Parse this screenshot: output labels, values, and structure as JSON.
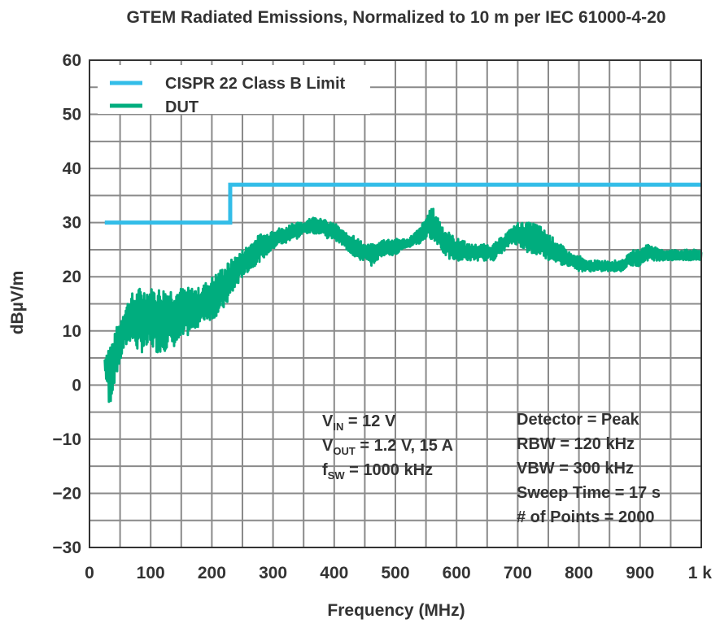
{
  "chart_data": {
    "type": "line",
    "title": "GTEM Radiated Emissions, Normalized to 10 m per IEC 61000-4-20",
    "xlabel": "Frequency (MHz)",
    "ylabel": "dBµV/m",
    "xlim": [
      0,
      1000
    ],
    "ylim": [
      -30,
      60
    ],
    "x_ticks": [
      0,
      100,
      200,
      300,
      400,
      500,
      600,
      700,
      800,
      900,
      1000
    ],
    "x_tick_labels": [
      "0",
      "100",
      "200",
      "300",
      "400",
      "500",
      "600",
      "700",
      "800",
      "900",
      "1 k"
    ],
    "y_ticks": [
      60,
      50,
      40,
      30,
      20,
      10,
      0,
      -10,
      -20,
      -30
    ],
    "y_tick_labels": [
      "60",
      "50",
      "40",
      "30",
      "20",
      "10",
      "0",
      "−10",
      "−20",
      "−30"
    ],
    "grid": true,
    "legend_position": "top-left",
    "series": [
      {
        "name": "CISPR 22 Class B Limit",
        "color": "#33bde8",
        "x": [
          25,
          230,
          230,
          1000
        ],
        "y": [
          30,
          30,
          37,
          37
        ]
      },
      {
        "name": "DUT",
        "color": "#00ad7e",
        "envelope_x": [
          25,
          27,
          30,
          32,
          35,
          40,
          45,
          50,
          55,
          60,
          65,
          70,
          75,
          80,
          90,
          100,
          110,
          120,
          130,
          140,
          150,
          160,
          170,
          180,
          190,
          200,
          210,
          220,
          230,
          240,
          250,
          260,
          270,
          280,
          290,
          300,
          310,
          320,
          330,
          340,
          350,
          360,
          370,
          380,
          390,
          400,
          410,
          420,
          430,
          440,
          450,
          460,
          470,
          480,
          490,
          500,
          510,
          520,
          530,
          540,
          550,
          560,
          565,
          570,
          575,
          580,
          590,
          600,
          610,
          620,
          630,
          640,
          650,
          660,
          670,
          680,
          690,
          700,
          710,
          720,
          730,
          740,
          750,
          760,
          770,
          780,
          790,
          800,
          810,
          820,
          830,
          840,
          850,
          860,
          870,
          880,
          890,
          900,
          910,
          920,
          930,
          940,
          950,
          960,
          970,
          980,
          990,
          1000
        ],
        "envelope_min": [
          3,
          1,
          -1,
          -5,
          -3,
          0,
          2,
          4,
          6,
          7,
          8,
          8,
          7,
          6,
          6,
          7,
          6,
          6,
          7,
          7,
          8,
          9,
          10,
          11,
          12,
          12,
          13,
          14,
          16,
          18,
          20,
          21,
          22,
          23,
          24,
          25,
          26,
          26,
          27,
          27,
          28,
          28,
          28,
          28,
          27,
          27,
          26,
          25,
          24,
          23,
          23,
          22,
          23,
          24,
          24,
          24,
          25,
          25,
          26,
          26,
          27,
          27,
          26,
          26,
          25,
          24,
          23,
          23,
          23,
          23,
          23,
          23,
          23,
          23,
          24,
          25,
          26,
          26,
          25,
          24,
          24,
          24,
          23,
          23,
          22,
          22,
          22,
          21,
          21,
          21,
          21,
          21,
          21,
          21,
          21,
          22,
          22,
          22,
          23,
          23,
          23,
          23,
          23,
          23,
          23,
          23,
          23,
          23
        ],
        "envelope_max": [
          5,
          6,
          7,
          8,
          8,
          9,
          11,
          12,
          14,
          15,
          16,
          17,
          17,
          18,
          18,
          18,
          18,
          18,
          18,
          18,
          18,
          18,
          18,
          18,
          19,
          20,
          21,
          22,
          23,
          24,
          25,
          26,
          27,
          28,
          28,
          29,
          29,
          29,
          30,
          30,
          30,
          31,
          31,
          31,
          30,
          30,
          29,
          28,
          28,
          27,
          26,
          26,
          26,
          27,
          27,
          27,
          27,
          27,
          28,
          29,
          31,
          33,
          32,
          31,
          30,
          29,
          28,
          27,
          27,
          26,
          26,
          26,
          26,
          26,
          27,
          28,
          29,
          30,
          30,
          30,
          30,
          29,
          28,
          27,
          26,
          25,
          24,
          24,
          23,
          23,
          23,
          23,
          23,
          23,
          23,
          24,
          25,
          25,
          26,
          26,
          25,
          25,
          25,
          25,
          25,
          25,
          25,
          25
        ]
      }
    ],
    "annotations": {
      "left": [
        {
          "main": "V",
          "sub": "IN",
          "rest": " = 12 V"
        },
        {
          "main": "V",
          "sub": "OUT",
          "rest": " = 1.2 V, 15 A"
        },
        {
          "main": "f",
          "sub": "SW",
          "rest": " = 1000 kHz"
        }
      ],
      "right": [
        "Detector = Peak",
        "RBW = 120 kHz",
        "VBW = 300 kHz",
        "Sweep Time = 17 s",
        "# of Points = 2000"
      ]
    }
  }
}
